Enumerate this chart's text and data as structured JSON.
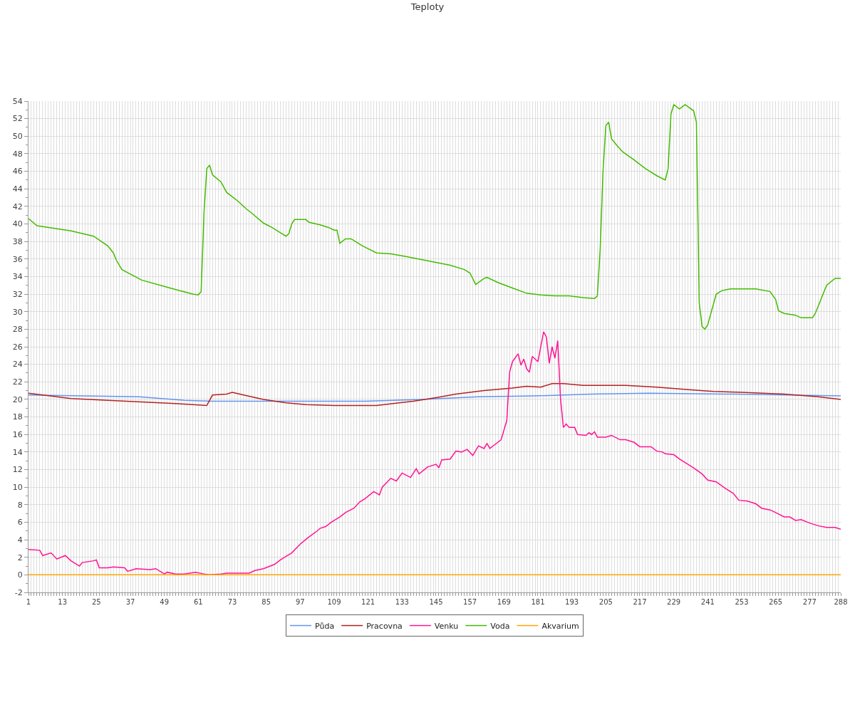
{
  "chart_data": {
    "type": "line",
    "title": "Teploty",
    "legend": "bottom",
    "grid": true,
    "marker": "none",
    "line_style": "solid",
    "xlim": [
      1,
      288
    ],
    "ylim": [
      -2,
      54
    ],
    "yticks": [
      -2,
      0,
      2,
      4,
      6,
      8,
      10,
      12,
      14,
      16,
      18,
      20,
      22,
      24,
      26,
      28,
      30,
      32,
      34,
      36,
      38,
      40,
      42,
      44,
      46,
      48,
      50,
      52,
      54
    ],
    "xticks": [
      1,
      {
        "value": 2,
        "label": null
      },
      {
        "value": 3,
        "label": null
      },
      {
        "value": 4,
        "label": null
      },
      {
        "value": 5,
        "label": null
      },
      {
        "value": 6,
        "label": null
      },
      {
        "value": 7,
        "label": null
      },
      {
        "value": 8,
        "label": null
      },
      {
        "value": 9,
        "label": null
      },
      {
        "value": 10,
        "label": null
      },
      {
        "value": 11,
        "label": null
      },
      {
        "value": 12,
        "label": null
      },
      13,
      {
        "value": 14,
        "label": null
      },
      {
        "value": 15,
        "label": null
      },
      {
        "value": 16,
        "label": null
      },
      {
        "value": 17,
        "label": null
      },
      {
        "value": 18,
        "label": null
      },
      {
        "value": 19,
        "label": null
      },
      {
        "value": 20,
        "label": null
      },
      {
        "value": 21,
        "label": null
      },
      {
        "value": 22,
        "label": null
      },
      {
        "value": 23,
        "label": null
      },
      {
        "value": 24,
        "label": null
      },
      25,
      {
        "value": 26,
        "label": null
      },
      {
        "value": 27,
        "label": null
      },
      {
        "value": 28,
        "label": null
      },
      {
        "value": 29,
        "label": null
      },
      {
        "value": 30,
        "label": null
      },
      {
        "value": 31,
        "label": null
      },
      {
        "value": 32,
        "label": null
      },
      {
        "value": 33,
        "label": null
      },
      {
        "value": 34,
        "label": null
      },
      {
        "value": 35,
        "label": null
      },
      {
        "value": 36,
        "label": null
      },
      37,
      {
        "value": 38,
        "label": null
      },
      {
        "value": 39,
        "label": null
      },
      {
        "value": 40,
        "label": null
      },
      {
        "value": 41,
        "label": null
      },
      {
        "value": 42,
        "label": null
      },
      {
        "value": 43,
        "label": null
      },
      {
        "value": 44,
        "label": null
      },
      {
        "value": 45,
        "label": null
      },
      {
        "value": 46,
        "label": null
      },
      {
        "value": 47,
        "label": null
      },
      {
        "value": 48,
        "label": null
      },
      49,
      {
        "value": 50,
        "label": null
      },
      {
        "value": 51,
        "label": null
      },
      {
        "value": 52,
        "label": null
      },
      {
        "value": 53,
        "label": null
      },
      {
        "value": 54,
        "label": null
      },
      {
        "value": 55,
        "label": null
      },
      {
        "value": 56,
        "label": null
      },
      {
        "value": 57,
        "label": null
      },
      {
        "value": 58,
        "label": null
      },
      {
        "value": 59,
        "label": null
      },
      {
        "value": 60,
        "label": null
      },
      61,
      {
        "value": 62,
        "label": null
      },
      {
        "value": 63,
        "label": null
      },
      {
        "value": 64,
        "label": null
      },
      {
        "value": 65,
        "label": null
      },
      {
        "value": 66,
        "label": null
      },
      {
        "value": 67,
        "label": null
      },
      {
        "value": 68,
        "label": null
      },
      {
        "value": 69,
        "label": null
      },
      {
        "value": 70,
        "label": null
      },
      {
        "value": 71,
        "label": null
      },
      {
        "value": 72,
        "label": null
      },
      73,
      {
        "value": 74,
        "label": null
      },
      {
        "value": 75,
        "label": null
      },
      {
        "value": 76,
        "label": null
      },
      {
        "value": 77,
        "label": null
      },
      {
        "value": 78,
        "label": null
      },
      {
        "value": 79,
        "label": null
      },
      {
        "value": 80,
        "label": null
      },
      {
        "value": 81,
        "label": null
      },
      {
        "value": 82,
        "label": null
      },
      {
        "value": 83,
        "label": null
      },
      {
        "value": 84,
        "label": null
      },
      85,
      {
        "value": 86,
        "label": null
      },
      {
        "value": 87,
        "label": null
      },
      {
        "value": 88,
        "label": null
      },
      {
        "value": 89,
        "label": null
      },
      {
        "value": 90,
        "label": null
      },
      {
        "value": 91,
        "label": null
      },
      {
        "value": 92,
        "label": null
      },
      {
        "value": 93,
        "label": null
      },
      {
        "value": 94,
        "label": null
      },
      {
        "value": 95,
        "label": null
      },
      {
        "value": 96,
        "label": null
      },
      97,
      {
        "value": 98,
        "label": null
      },
      {
        "value": 99,
        "label": null
      },
      {
        "value": 100,
        "label": null
      },
      {
        "value": 101,
        "label": null
      },
      {
        "value": 102,
        "label": null
      },
      {
        "value": 103,
        "label": null
      },
      {
        "value": 104,
        "label": null
      },
      {
        "value": 105,
        "label": null
      },
      {
        "value": 106,
        "label": null
      },
      {
        "value": 107,
        "label": null
      },
      {
        "value": 108,
        "label": null
      },
      109,
      {
        "value": 110,
        "label": null
      },
      {
        "value": 111,
        "label": null
      },
      {
        "value": 112,
        "label": null
      },
      {
        "value": 113,
        "label": null
      },
      {
        "value": 114,
        "label": null
      },
      {
        "value": 115,
        "label": null
      },
      {
        "value": 116,
        "label": null
      },
      {
        "value": 117,
        "label": null
      },
      {
        "value": 118,
        "label": null
      },
      {
        "value": 119,
        "label": null
      },
      {
        "value": 120,
        "label": null
      },
      121,
      {
        "value": 122,
        "label": null
      },
      {
        "value": 123,
        "label": null
      },
      {
        "value": 124,
        "label": null
      },
      {
        "value": 125,
        "label": null
      },
      {
        "value": 126,
        "label": null
      },
      {
        "value": 127,
        "label": null
      },
      {
        "value": 128,
        "label": null
      },
      {
        "value": 129,
        "label": null
      },
      {
        "value": 130,
        "label": null
      },
      {
        "value": 131,
        "label": null
      },
      {
        "value": 132,
        "label": null
      },
      133,
      {
        "value": 134,
        "label": null
      },
      {
        "value": 135,
        "label": null
      },
      {
        "value": 136,
        "label": null
      },
      {
        "value": 137,
        "label": null
      },
      {
        "value": 138,
        "label": null
      },
      {
        "value": 139,
        "label": null
      },
      {
        "value": 140,
        "label": null
      },
      {
        "value": 141,
        "label": null
      },
      {
        "value": 142,
        "label": null
      },
      {
        "value": 143,
        "label": null
      },
      {
        "value": 144,
        "label": null
      },
      145,
      {
        "value": 146,
        "label": null
      },
      {
        "value": 147,
        "label": null
      },
      {
        "value": 148,
        "label": null
      },
      {
        "value": 149,
        "label": null
      },
      {
        "value": 150,
        "label": null
      },
      {
        "value": 151,
        "label": null
      },
      {
        "value": 152,
        "label": null
      },
      {
        "value": 153,
        "label": null
      },
      {
        "value": 154,
        "label": null
      },
      {
        "value": 155,
        "label": null
      },
      {
        "value": 156,
        "label": null
      },
      157,
      {
        "value": 158,
        "label": null
      },
      {
        "value": 159,
        "label": null
      },
      {
        "value": 160,
        "label": null
      },
      {
        "value": 161,
        "label": null
      },
      {
        "value": 162,
        "label": null
      },
      {
        "value": 163,
        "label": null
      },
      {
        "value": 164,
        "label": null
      },
      {
        "value": 165,
        "label": null
      },
      {
        "value": 166,
        "label": null
      },
      {
        "value": 167,
        "label": null
      },
      {
        "value": 168,
        "label": null
      },
      169,
      {
        "value": 170,
        "label": null
      },
      {
        "value": 171,
        "label": null
      },
      {
        "value": 172,
        "label": null
      },
      {
        "value": 173,
        "label": null
      },
      {
        "value": 174,
        "label": null
      },
      {
        "value": 175,
        "label": null
      },
      {
        "value": 176,
        "label": null
      },
      {
        "value": 177,
        "label": null
      },
      {
        "value": 178,
        "label": null
      },
      {
        "value": 179,
        "label": null
      },
      {
        "value": 180,
        "label": null
      },
      181,
      {
        "value": 182,
        "label": null
      },
      {
        "value": 183,
        "label": null
      },
      {
        "value": 184,
        "label": null
      },
      {
        "value": 185,
        "label": null
      },
      {
        "value": 186,
        "label": null
      },
      {
        "value": 187,
        "label": null
      },
      {
        "value": 188,
        "label": null
      },
      {
        "value": 189,
        "label": null
      },
      {
        "value": 190,
        "label": null
      },
      {
        "value": 191,
        "label": null
      },
      {
        "value": 192,
        "label": null
      },
      193,
      {
        "value": 194,
        "label": null
      },
      {
        "value": 195,
        "label": null
      },
      {
        "value": 196,
        "label": null
      },
      {
        "value": 197,
        "label": null
      },
      {
        "value": 198,
        "label": null
      },
      {
        "value": 199,
        "label": null
      },
      {
        "value": 200,
        "label": null
      },
      {
        "value": 201,
        "label": null
      },
      {
        "value": 202,
        "label": null
      },
      {
        "value": 203,
        "label": null
      },
      {
        "value": 204,
        "label": null
      },
      205,
      {
        "value": 206,
        "label": null
      },
      {
        "value": 207,
        "label": null
      },
      {
        "value": 208,
        "label": null
      },
      {
        "value": 209,
        "label": null
      },
      {
        "value": 210,
        "label": null
      },
      {
        "value": 211,
        "label": null
      },
      {
        "value": 212,
        "label": null
      },
      {
        "value": 213,
        "label": null
      },
      {
        "value": 214,
        "label": null
      },
      {
        "value": 215,
        "label": null
      },
      {
        "value": 216,
        "label": null
      },
      217,
      {
        "value": 218,
        "label": null
      },
      {
        "value": 219,
        "label": null
      },
      {
        "value": 220,
        "label": null
      },
      {
        "value": 221,
        "label": null
      },
      {
        "value": 222,
        "label": null
      },
      {
        "value": 223,
        "label": null
      },
      {
        "value": 224,
        "label": null
      },
      {
        "value": 225,
        "label": null
      },
      {
        "value": 226,
        "label": null
      },
      {
        "value": 227,
        "label": null
      },
      {
        "value": 228,
        "label": null
      },
      229,
      {
        "value": 230,
        "label": null
      },
      {
        "value": 231,
        "label": null
      },
      {
        "value": 232,
        "label": null
      },
      {
        "value": 233,
        "label": null
      },
      {
        "value": 234,
        "label": null
      },
      {
        "value": 235,
        "label": null
      },
      {
        "value": 236,
        "label": null
      },
      {
        "value": 237,
        "label": null
      },
      {
        "value": 238,
        "label": null
      },
      {
        "value": 239,
        "label": null
      },
      {
        "value": 240,
        "label": null
      },
      241,
      {
        "value": 242,
        "label": null
      },
      {
        "value": 243,
        "label": null
      },
      {
        "value": 244,
        "label": null
      },
      {
        "value": 245,
        "label": null
      },
      {
        "value": 246,
        "label": null
      },
      {
        "value": 247,
        "label": null
      },
      {
        "value": 248,
        "label": null
      },
      {
        "value": 249,
        "label": null
      },
      {
        "value": 250,
        "label": null
      },
      {
        "value": 251,
        "label": null
      },
      {
        "value": 252,
        "label": null
      },
      253,
      {
        "value": 254,
        "label": null
      },
      {
        "value": 255,
        "label": null
      },
      {
        "value": 256,
        "label": null
      },
      {
        "value": 257,
        "label": null
      },
      {
        "value": 258,
        "label": null
      },
      {
        "value": 259,
        "label": null
      },
      {
        "value": 260,
        "label": null
      },
      {
        "value": 261,
        "label": null
      },
      {
        "value": 262,
        "label": null
      },
      {
        "value": 263,
        "label": null
      },
      {
        "value": 264,
        "label": null
      },
      265,
      {
        "value": 266,
        "label": null
      },
      {
        "value": 267,
        "label": null
      },
      {
        "value": 268,
        "label": null
      },
      {
        "value": 269,
        "label": null
      },
      {
        "value": 270,
        "label": null
      },
      {
        "value": 271,
        "label": null
      },
      {
        "value": 272,
        "label": null
      },
      {
        "value": 273,
        "label": null
      },
      {
        "value": 274,
        "label": null
      },
      {
        "value": 275,
        "label": null
      },
      {
        "value": 276,
        "label": null
      },
      277,
      {
        "value": 278,
        "label": null
      },
      {
        "value": 279,
        "label": null
      },
      {
        "value": 280,
        "label": null
      },
      {
        "value": 281,
        "label": null
      },
      {
        "value": 282,
        "label": null
      },
      {
        "value": 283,
        "label": null
      },
      {
        "value": 284,
        "label": null
      },
      {
        "value": 285,
        "label": null
      },
      {
        "value": 286,
        "label": null
      },
      {
        "value": 287,
        "label": null
      },
      288
    ],
    "series": [
      {
        "name": "Půda",
        "color": "#6495ed",
        "x": [
          1,
          20,
          40,
          56,
          66,
          90,
          120,
          140,
          160,
          180,
          200,
          220,
          250,
          288
        ],
        "values": [
          20.5,
          20.4,
          20.3,
          19.9,
          19.8,
          19.8,
          19.8,
          20,
          20.3,
          20.4,
          20.6,
          20.7,
          20.6,
          20.4
        ]
      },
      {
        "name": "Pracovna",
        "color": "#b22222",
        "x": [
          1,
          16,
          29,
          54,
          64,
          66,
          71,
          73,
          77,
          84,
          92,
          99,
          109,
          124,
          132,
          137,
          145,
          152,
          162,
          172,
          177,
          182,
          186,
          190,
          197,
          212,
          223,
          235,
          243,
          253,
          268,
          280,
          288
        ],
        "values": [
          20.7,
          20.1,
          19.9,
          19.5,
          19.3,
          20.5,
          20.6,
          20.8,
          20.5,
          20,
          19.6,
          19.4,
          19.3,
          19.3,
          19.6,
          19.8,
          20.2,
          20.6,
          21,
          21.3,
          21.5,
          21.4,
          21.8,
          21.8,
          21.6,
          21.6,
          21.4,
          21.1,
          20.9,
          20.8,
          20.6,
          20.3,
          20
        ]
      },
      {
        "name": "Venku",
        "color": "#ff1493",
        "x": [
          1,
          5,
          6,
          9,
          11,
          14,
          16,
          19,
          20,
          24,
          25,
          26,
          29,
          31,
          35,
          36,
          39,
          44,
          46,
          49,
          50,
          53,
          56,
          60,
          63,
          65,
          69,
          71,
          76,
          79,
          81,
          84,
          88,
          90,
          92,
          94,
          97,
          100,
          103,
          104,
          106,
          108,
          111,
          113,
          116,
          118,
          120,
          123,
          125,
          126,
          129,
          131,
          133,
          136,
          138,
          139,
          142,
          145,
          146,
          147,
          150,
          152,
          154,
          156,
          158,
          160,
          162,
          163,
          164,
          166,
          168,
          170,
          171,
          172,
          174,
          175,
          176,
          177,
          178,
          179,
          181,
          183,
          184,
          185,
          186,
          187,
          188,
          189,
          190,
          191,
          192,
          194,
          195,
          198,
          199,
          200,
          201,
          202,
          205,
          207,
          210,
          212,
          215,
          217,
          221,
          223,
          225,
          226,
          229,
          231,
          234,
          236,
          239,
          241,
          244,
          247,
          248,
          250,
          252,
          255,
          258,
          260,
          263,
          265,
          268,
          270,
          272,
          274,
          277,
          280,
          283,
          286,
          288
        ],
        "values": [
          2.9,
          2.8,
          2.2,
          2.5,
          1.8,
          2.2,
          1.6,
          1,
          1.4,
          1.6,
          1.7,
          0.8,
          0.8,
          0.9,
          0.8,
          0.4,
          0.7,
          0.6,
          0.7,
          0.1,
          0.3,
          0.1,
          0.1,
          0.3,
          0.1,
          0,
          0.1,
          0.2,
          0.2,
          0.2,
          0.5,
          0.7,
          1.2,
          1.7,
          2.1,
          2.5,
          3.5,
          4.3,
          5,
          5.3,
          5.5,
          6,
          6.6,
          7.1,
          7.6,
          8.3,
          8.7,
          9.5,
          9.1,
          10,
          11,
          10.7,
          11.6,
          11.1,
          12.1,
          11.5,
          12.3,
          12.6,
          12.2,
          13.1,
          13.2,
          14.1,
          14,
          14.3,
          13.6,
          14.7,
          14.4,
          15,
          14.4,
          14.9,
          15.4,
          17.6,
          23.1,
          24.3,
          25.2,
          23.9,
          24.6,
          23.5,
          23.1,
          24.9,
          24.3,
          27.7,
          27.1,
          24.1,
          26,
          24.7,
          26.7,
          20,
          16.8,
          17.2,
          16.8,
          16.8,
          16,
          15.9,
          16.2,
          16,
          16.3,
          15.7,
          15.7,
          15.9,
          15.4,
          15.4,
          15.1,
          14.6,
          14.6,
          14.1,
          14,
          13.8,
          13.7,
          13.2,
          12.6,
          12.2,
          11.5,
          10.8,
          10.6,
          9.9,
          9.7,
          9.3,
          8.5,
          8.4,
          8.1,
          7.6,
          7.4,
          7.1,
          6.6,
          6.6,
          6.2,
          6.3,
          5.9,
          5.6,
          5.4,
          5.4,
          5.2
        ]
      },
      {
        "name": "Voda",
        "color": "#44bb00",
        "x": [
          1,
          4,
          16,
          24,
          29,
          31,
          32,
          34,
          41,
          51,
          59,
          61,
          62,
          63,
          64,
          65,
          66,
          69,
          71,
          75,
          78,
          80,
          84,
          87,
          90,
          92,
          93,
          94,
          95,
          99,
          100,
          104,
          107,
          109,
          110,
          111,
          113,
          115,
          117,
          119,
          124,
          129,
          134,
          142,
          150,
          155,
          157,
          159,
          162,
          163,
          167,
          172,
          177,
          182,
          187,
          192,
          197,
          201,
          202,
          203,
          204,
          205,
          206,
          207,
          209,
          211,
          215,
          219,
          223,
          226,
          227,
          228,
          229,
          231,
          233,
          236,
          237,
          238,
          239,
          240,
          241,
          244,
          246,
          249,
          258,
          263,
          265,
          266,
          268,
          272,
          274,
          278,
          279,
          281,
          283,
          286,
          288
        ],
        "values": [
          40.6,
          39.8,
          39.2,
          38.6,
          37.5,
          36.7,
          35.9,
          34.8,
          33.6,
          32.7,
          32,
          31.9,
          32.3,
          41.2,
          46.3,
          46.7,
          45.6,
          44.8,
          43.6,
          42.6,
          41.7,
          41.2,
          40.1,
          39.6,
          39,
          38.6,
          38.9,
          40,
          40.5,
          40.5,
          40.2,
          39.9,
          39.6,
          39.3,
          39.3,
          37.8,
          38.3,
          38.3,
          37.9,
          37.5,
          36.7,
          36.6,
          36.3,
          35.8,
          35.3,
          34.8,
          34.4,
          33.1,
          33.8,
          33.9,
          33.3,
          32.7,
          32.1,
          31.9,
          31.8,
          31.8,
          31.6,
          31.5,
          31.8,
          37.1,
          46,
          51.2,
          51.6,
          49.7,
          48.9,
          48.2,
          47.3,
          46.3,
          45.5,
          45,
          46.3,
          52.5,
          53.6,
          53.1,
          53.6,
          52.9,
          51.6,
          31,
          28.3,
          28,
          28.5,
          32,
          32.4,
          32.6,
          32.6,
          32.3,
          31.4,
          30.1,
          29.8,
          29.6,
          29.3,
          29.3,
          29.8,
          31.4,
          33,
          33.8,
          33.8
        ]
      },
      {
        "name": "Akvarium",
        "color": "#ffa500",
        "x": [
          1,
          288
        ],
        "values": [
          0,
          0
        ]
      }
    ]
  }
}
